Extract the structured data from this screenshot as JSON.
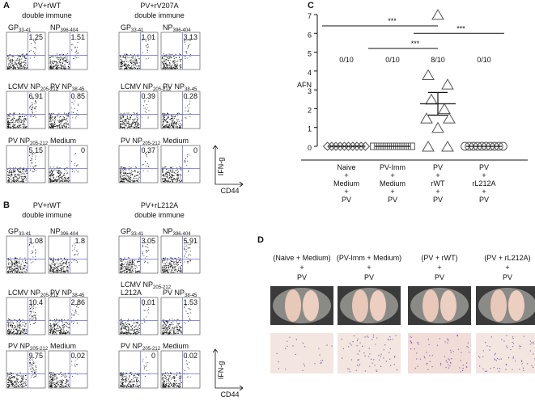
{
  "panel_a": {
    "letter": "A",
    "groups": [
      {
        "title": [
          "PV+rWT",
          "double immune"
        ],
        "plots": [
          {
            "label": {
              "text": "GP",
              "sub": "33-41"
            },
            "value": 1.25
          },
          {
            "label": {
              "text": "NP",
              "sub": "396-404"
            },
            "value": 1.51
          },
          {
            "label": {
              "text": "LCMV NP",
              "sub": "205-212"
            },
            "value": 6.91
          },
          {
            "label": {
              "text": "PV NP",
              "sub": "38-45"
            },
            "value": 0.85
          },
          {
            "label": {
              "text": "PV NP",
              "sub": "205-212"
            },
            "value": 5.15
          },
          {
            "label": {
              "text": "Medium"
            },
            "value": 0
          }
        ]
      },
      {
        "title": [
          "PV+rV207A",
          "double immune"
        ],
        "plots": [
          {
            "label": {
              "text": "GP",
              "sub": "33-41"
            },
            "value": 1.01
          },
          {
            "label": {
              "text": "NP",
              "sub": "396-404"
            },
            "value": 3.13
          },
          {
            "label": {
              "text": "LCMV NP",
              "sub": "205-212"
            },
            "value": 0.39
          },
          {
            "label": {
              "text": "PV NP",
              "sub": "38-45"
            },
            "value": 0.28
          },
          {
            "label": {
              "text": "PV NP",
              "sub": "205-212"
            },
            "value": 0.37
          },
          {
            "label": {
              "text": "Medium"
            },
            "value": 0
          }
        ]
      }
    ],
    "y_axis_label": "IFN-g",
    "x_axis_label": "CD44"
  },
  "panel_b": {
    "letter": "B",
    "groups": [
      {
        "title": [
          "PV+rWT",
          "double immune"
        ],
        "plots": [
          {
            "label": {
              "text": "GP",
              "sub": "33-41"
            },
            "value": 1.08
          },
          {
            "label": {
              "text": "NP",
              "sub": "396-404"
            },
            "value": 1.8
          },
          {
            "label": {
              "text": "LCMV NP",
              "sub": "205-212"
            },
            "value": 10.4
          },
          {
            "label": {
              "text": "PV NP",
              "sub": "38-45"
            },
            "value": 2.86
          },
          {
            "label": {
              "text": "PV NP",
              "sub": "205-212"
            },
            "value": 9.75
          },
          {
            "label": {
              "text": "Medium"
            },
            "value": 0.02
          }
        ]
      },
      {
        "title": [
          "PV+rL212A",
          "double immune"
        ],
        "plots": [
          {
            "label": {
              "text": "GP",
              "sub": "33-41"
            },
            "value": 3.05
          },
          {
            "label": {
              "text": "NP",
              "sub": "396-404"
            },
            "value": 5.91
          },
          {
            "label": {
              "text": "LCMV NP",
              "sub": "205-212",
              "line2": "L212A"
            },
            "value": 0.01
          },
          {
            "label": {
              "text": "PV NP",
              "sub": "38-45"
            },
            "value": 1.53
          },
          {
            "label": {
              "text": "PV NP",
              "sub": "205-212"
            },
            "value": 0
          },
          {
            "label": {
              "text": "Medium"
            },
            "value": 0.02
          }
        ]
      }
    ],
    "y_axis_label": "IFN-g",
    "x_axis_label": "CD44"
  },
  "chart_data": {
    "type": "scatter",
    "letter": "C",
    "ylabel": "AFN",
    "categories": [
      [
        "Naive",
        "+",
        "Medium",
        "+",
        "PV"
      ],
      [
        "PV-Imm",
        "+",
        "Medium",
        "+",
        "PV"
      ],
      [
        "PV",
        "+",
        "rWT",
        "+",
        "PV"
      ],
      [
        "PV",
        "+",
        "rL212A",
        "+",
        "PV"
      ]
    ],
    "counts": [
      "0/10",
      "0/10",
      "8/10",
      "0/10"
    ],
    "significance": [
      "***",
      "***",
      "***"
    ],
    "ylim": [
      0,
      7
    ],
    "yticks": [
      0,
      1,
      2,
      3,
      4,
      5,
      6,
      7
    ],
    "series": [
      {
        "marker": "diamond",
        "color": "#555555",
        "values": [
          0,
          0,
          0,
          0,
          0,
          0,
          0,
          0,
          0,
          0
        ],
        "mean": 0,
        "sem": 0
      },
      {
        "marker": "square",
        "color": "#555555",
        "values": [
          0,
          0,
          0,
          0,
          0,
          0,
          0,
          0,
          0,
          0
        ],
        "mean": 0,
        "sem": 0
      },
      {
        "marker": "triangle",
        "color": "#555555",
        "values": [
          7,
          3.8,
          3.3,
          2.5,
          2,
          1.5,
          1.5,
          1,
          0,
          0
        ],
        "mean": 2.26,
        "sem": 0.6
      },
      {
        "marker": "circle",
        "color": "#555555",
        "values": [
          0,
          0,
          0,
          0,
          0,
          0,
          0,
          0,
          0,
          0
        ],
        "mean": 0,
        "sem": 0
      }
    ]
  },
  "panel_d": {
    "letter": "D",
    "columns": [
      [
        "(Naive + Medium)",
        "+",
        "PV"
      ],
      [
        "(PV-Imm + Medium)",
        "+",
        "PV"
      ],
      [
        "(PV + rWT)",
        "+",
        "PV"
      ],
      [
        "(PV + rL212A)",
        "+",
        "PV"
      ]
    ]
  }
}
